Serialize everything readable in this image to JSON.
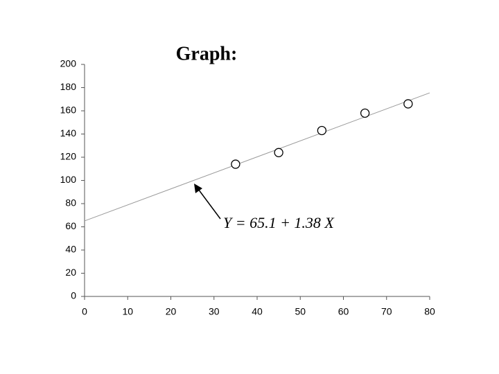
{
  "chart_data": {
    "type": "scatter",
    "title": "Graph:",
    "annotation": "Y = 65.1 + 1.38 X",
    "series": [
      {
        "x": [
          35,
          45,
          55,
          65,
          75
        ],
        "values": [
          114,
          124,
          143,
          158,
          166
        ],
        "color": "#000000"
      }
    ],
    "fit_line": {
      "x": [
        0,
        80
      ],
      "values": [
        65.1,
        175.5
      ],
      "color": "#999999"
    },
    "xlim": [
      0,
      80
    ],
    "xticks": [
      0,
      10,
      20,
      30,
      40,
      50,
      60,
      70,
      80
    ],
    "ylim": [
      0,
      200
    ],
    "yticks": [
      0,
      20,
      40,
      60,
      80,
      100,
      120,
      140,
      160,
      180,
      200
    ],
    "grid": false
  }
}
